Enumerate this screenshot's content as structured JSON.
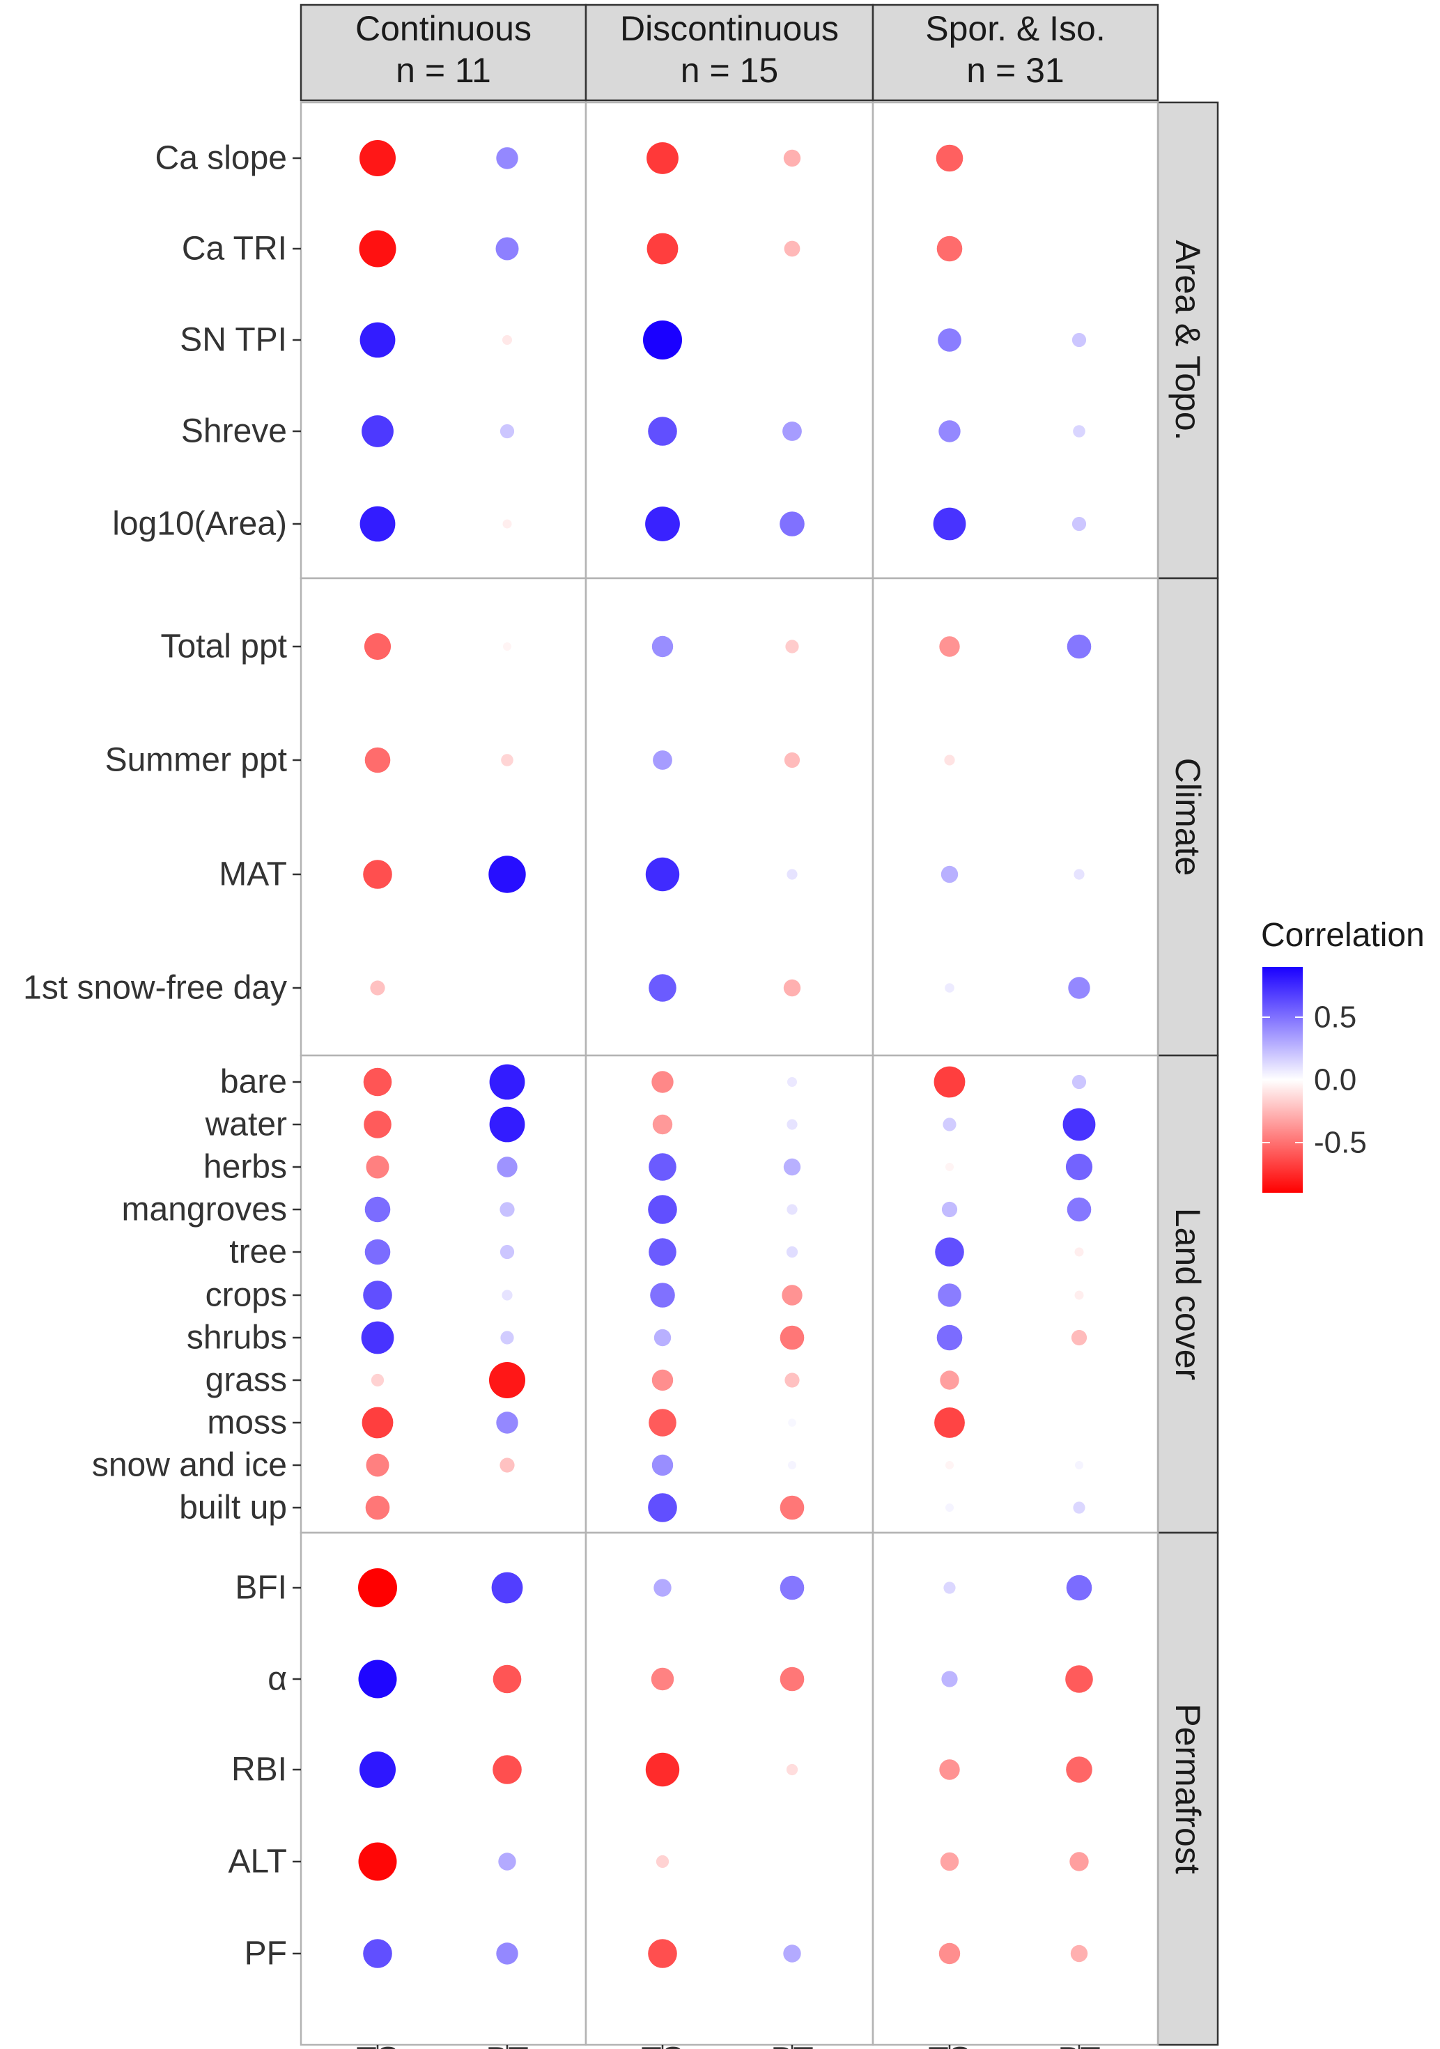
{
  "chart_data": {
    "type": "scatter",
    "subtype": "faceted correlation bubble plot",
    "x_categories": [
      "TS",
      "BT"
    ],
    "columns": [
      {
        "label": "Continuous\nn = 11"
      },
      {
        "label": "Discontinuous\nn = 15"
      },
      {
        "label": "Spor. & Iso.\nn = 31"
      }
    ],
    "rows": [
      {
        "label": "Area & Topo.",
        "variables": [
          "Ca slope",
          "Ca TRI",
          "SN TPI",
          "Shreve",
          "log10(Area)"
        ]
      },
      {
        "label": "Climate",
        "variables": [
          "Total ppt",
          "Summer ppt",
          "MAT",
          "1st snow-free day"
        ]
      },
      {
        "label": "Land cover",
        "variables": [
          "bare",
          "water",
          "herbs",
          "mangroves",
          "tree",
          "crops",
          "shrubs",
          "grass",
          "moss",
          "snow and ice",
          "built up"
        ]
      },
      {
        "label": "Permafrost",
        "variables": [
          "BFI",
          "α",
          "RBI",
          "ALT",
          "PF"
        ]
      }
    ],
    "legend": {
      "title": "Correlation",
      "ticks": [
        "0.5",
        "0.0",
        "-0.5"
      ],
      "tick_values": [
        0.5,
        0.0,
        -0.5
      ],
      "range": [
        -0.9,
        0.9
      ],
      "high_color": "#1a00ff",
      "mid_color": "#ffffff",
      "low_color": "#ff0000",
      "placement": "right"
    },
    "values": {
      "Continuous": {
        "Ca slope": [
          -0.82,
          0.42
        ],
        "Ca TRI": [
          -0.84,
          0.45
        ],
        "SN TPI": [
          0.8,
          -0.08
        ],
        "Shreve": [
          0.7,
          0.2
        ],
        "log10(Area)": [
          0.8,
          -0.06
        ],
        "Total ppt": [
          -0.55,
          -0.04
        ],
        "Summer ppt": [
          -0.52,
          -0.15
        ],
        "MAT": [
          -0.62,
          0.85
        ],
        "1st snow-free day": [
          -0.22,
          0.0
        ],
        "bare": [
          -0.6,
          0.8
        ],
        "water": [
          -0.58,
          0.8
        ],
        "herbs": [
          -0.45,
          0.38
        ],
        "mangroves": [
          0.52,
          0.22
        ],
        "tree": [
          0.52,
          0.2
        ],
        "crops": [
          0.62,
          0.1
        ],
        "shrubs": [
          0.72,
          0.18
        ],
        "grass": [
          -0.16,
          -0.82
        ],
        "moss": [
          -0.68,
          0.42
        ],
        "snow and ice": [
          -0.45,
          -0.22
        ],
        "built up": [
          -0.48,
          0.0
        ],
        "BFI": [
          -0.9,
          0.68
        ],
        "α": [
          0.88,
          -0.6
        ],
        "RBI": [
          0.82,
          -0.62
        ],
        "ALT": [
          -0.88,
          0.3
        ],
        "PF": [
          0.62,
          0.42
        ]
      },
      "Discontinuous": {
        "Ca slope": [
          -0.7,
          -0.28
        ],
        "Ca TRI": [
          -0.68,
          -0.25
        ],
        "SN TPI": [
          0.9,
          0.0
        ],
        "Shreve": [
          0.62,
          0.35
        ],
        "log10(Area)": [
          0.78,
          0.5
        ],
        "Total ppt": [
          0.4,
          -0.18
        ],
        "Summer ppt": [
          0.35,
          -0.24
        ],
        "MAT": [
          0.75,
          0.1
        ],
        "1st snow-free day": [
          0.58,
          -0.28
        ],
        "bare": [
          -0.42,
          0.08
        ],
        "water": [
          -0.36,
          0.1
        ],
        "herbs": [
          0.58,
          0.28
        ],
        "mangroves": [
          0.62,
          0.1
        ],
        "tree": [
          0.58,
          0.12
        ],
        "crops": [
          0.5,
          -0.38
        ],
        "shrubs": [
          0.28,
          -0.48
        ],
        "grass": [
          -0.4,
          -0.22
        ],
        "moss": [
          -0.58,
          0.03
        ],
        "snow and ice": [
          0.4,
          0.04
        ],
        "built up": [
          0.62,
          -0.48
        ],
        "BFI": [
          0.3,
          0.48
        ],
        "α": [
          -0.44,
          -0.48
        ],
        "RBI": [
          -0.75,
          -0.12
        ],
        "ALT": [
          -0.16,
          0.0
        ],
        "PF": [
          -0.62,
          0.3
        ]
      },
      "Spor. & Iso.": {
        "Ca slope": [
          -0.56,
          0.0
        ],
        "Ca TRI": [
          -0.52,
          0.0
        ],
        "SN TPI": [
          0.46,
          0.2
        ],
        "Shreve": [
          0.42,
          0.15
        ],
        "log10(Area)": [
          0.72,
          0.2
        ],
        "Total ppt": [
          -0.38,
          0.48
        ],
        "Summer ppt": [
          -0.1,
          0.0
        ],
        "MAT": [
          0.28,
          0.1
        ],
        "1st snow-free day": [
          0.07,
          0.42
        ],
        "bare": [
          -0.68,
          0.2
        ],
        "water": [
          0.18,
          0.72
        ],
        "herbs": [
          -0.04,
          0.55
        ],
        "mangroves": [
          0.24,
          0.48
        ],
        "tree": [
          0.62,
          -0.06
        ],
        "crops": [
          0.46,
          -0.06
        ],
        "shrubs": [
          0.52,
          -0.24
        ],
        "grass": [
          -0.34,
          0.0
        ],
        "moss": [
          -0.66,
          0.0
        ],
        "snow and ice": [
          -0.04,
          0.04
        ],
        "built up": [
          0.04,
          0.14
        ],
        "BFI": [
          0.14,
          0.52
        ],
        "α": [
          0.26,
          -0.58
        ],
        "RBI": [
          -0.38,
          -0.54
        ],
        "ALT": [
          -0.32,
          -0.34
        ],
        "PF": [
          -0.4,
          -0.28
        ]
      }
    }
  }
}
